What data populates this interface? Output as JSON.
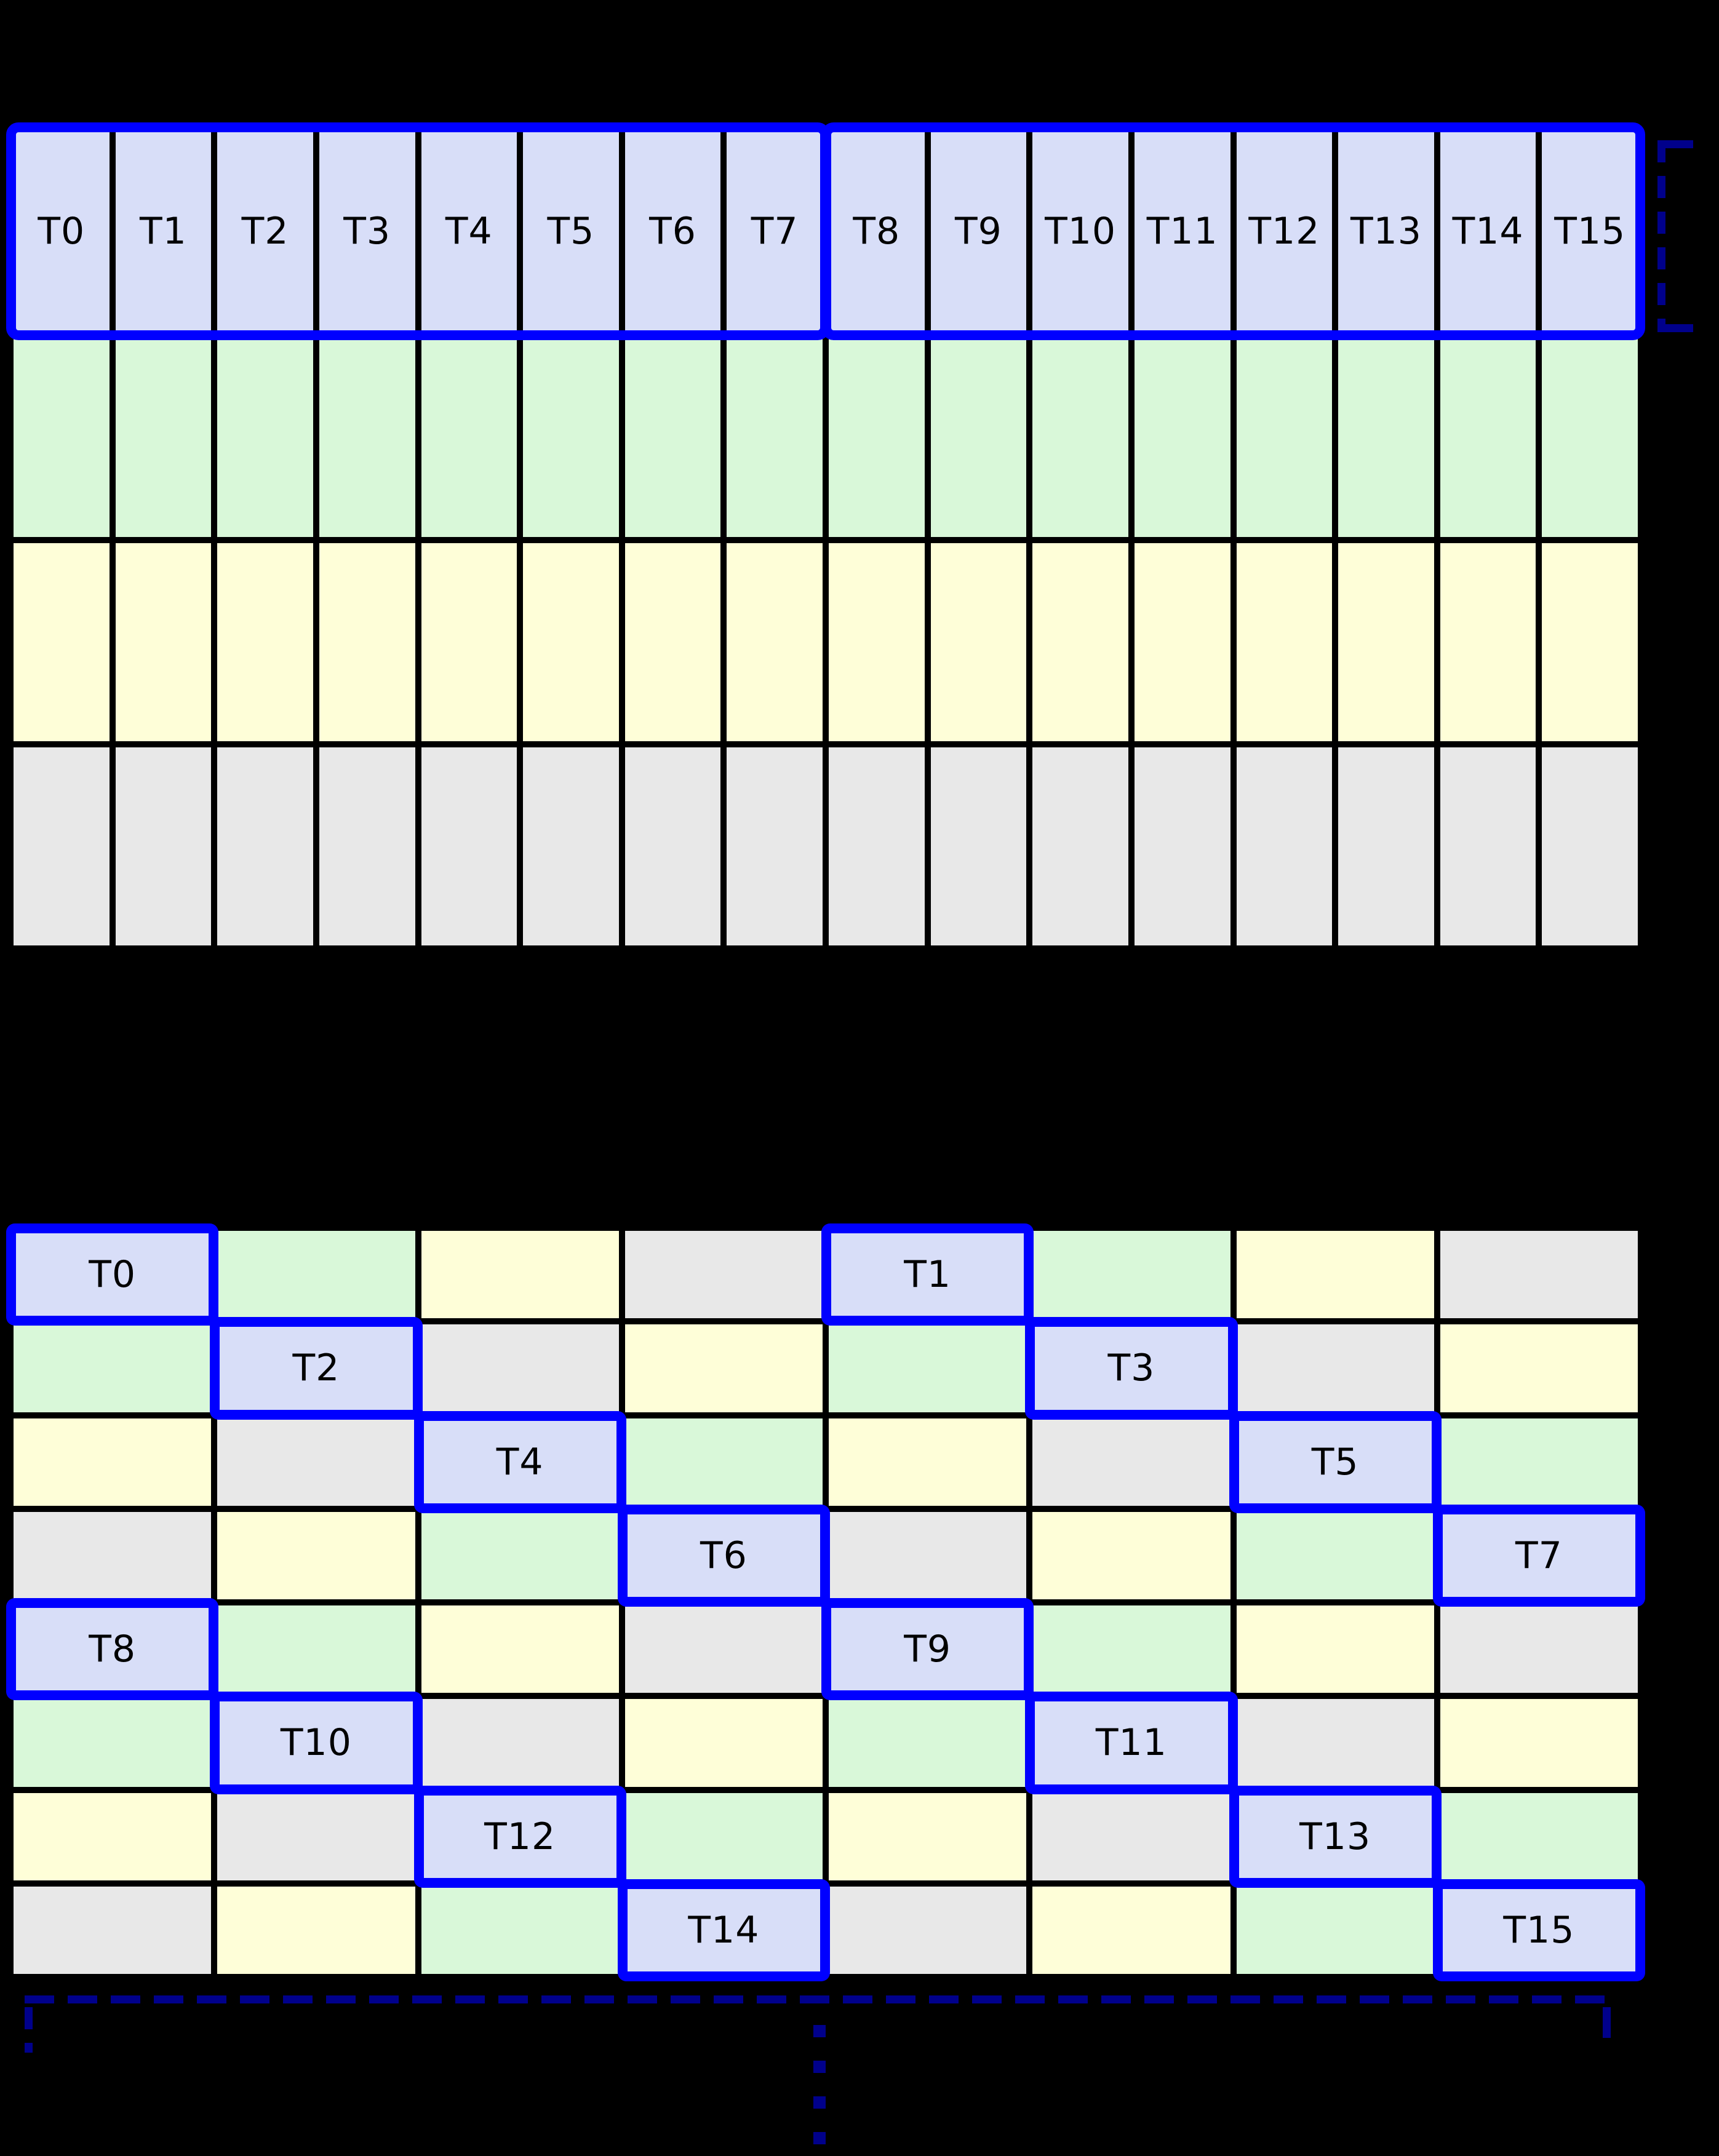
{
  "diagram": {
    "background": "#000000",
    "colors": {
      "banks": [
        "#D8DEF8",
        "#D9F8D9",
        "#FEFED8",
        "#E8E8E8"
      ],
      "highlight_border": "#0000FF",
      "bracket_dash": "#00008B",
      "grid_line": "#000000",
      "label_text": "#000000"
    },
    "table1": {
      "columns": 16,
      "header_labels": [
        "T0",
        "T1",
        "T2",
        "T3",
        "T4",
        "T5",
        "T6",
        "T7",
        "T8",
        "T9",
        "T10",
        "T11",
        "T12",
        "T13",
        "T14",
        "T15"
      ],
      "header_groups": [
        {
          "first": 0,
          "last": 7
        },
        {
          "first": 8,
          "last": 15
        }
      ],
      "body_row_banks": [
        1,
        2,
        3
      ]
    },
    "table2": {
      "columns": 8,
      "rows": [
        {
          "cells": [
            {
              "bank": 0,
              "label": "T0",
              "highlighted": true
            },
            {
              "bank": 1
            },
            {
              "bank": 2
            },
            {
              "bank": 3
            },
            {
              "bank": 0,
              "label": "T1",
              "highlighted": true
            },
            {
              "bank": 1
            },
            {
              "bank": 2
            },
            {
              "bank": 3
            }
          ]
        },
        {
          "cells": [
            {
              "bank": 1
            },
            {
              "bank": 0,
              "label": "T2",
              "highlighted": true
            },
            {
              "bank": 3
            },
            {
              "bank": 2
            },
            {
              "bank": 1
            },
            {
              "bank": 0,
              "label": "T3",
              "highlighted": true
            },
            {
              "bank": 3
            },
            {
              "bank": 2
            }
          ]
        },
        {
          "cells": [
            {
              "bank": 2
            },
            {
              "bank": 3
            },
            {
              "bank": 0,
              "label": "T4",
              "highlighted": true
            },
            {
              "bank": 1
            },
            {
              "bank": 2
            },
            {
              "bank": 3
            },
            {
              "bank": 0,
              "label": "T5",
              "highlighted": true
            },
            {
              "bank": 1
            }
          ]
        },
        {
          "cells": [
            {
              "bank": 3
            },
            {
              "bank": 2
            },
            {
              "bank": 1
            },
            {
              "bank": 0,
              "label": "T6",
              "highlighted": true
            },
            {
              "bank": 3
            },
            {
              "bank": 2
            },
            {
              "bank": 1
            },
            {
              "bank": 0,
              "label": "T7",
              "highlighted": true
            }
          ]
        },
        {
          "cells": [
            {
              "bank": 0,
              "label": "T8",
              "highlighted": true
            },
            {
              "bank": 1
            },
            {
              "bank": 2
            },
            {
              "bank": 3
            },
            {
              "bank": 0,
              "label": "T9",
              "highlighted": true
            },
            {
              "bank": 1
            },
            {
              "bank": 2
            },
            {
              "bank": 3
            }
          ]
        },
        {
          "cells": [
            {
              "bank": 1
            },
            {
              "bank": 0,
              "label": "T10",
              "highlighted": true
            },
            {
              "bank": 3
            },
            {
              "bank": 2
            },
            {
              "bank": 1
            },
            {
              "bank": 0,
              "label": "T11",
              "highlighted": true
            },
            {
              "bank": 3
            },
            {
              "bank": 2
            }
          ]
        },
        {
          "cells": [
            {
              "bank": 2
            },
            {
              "bank": 3
            },
            {
              "bank": 0,
              "label": "T12",
              "highlighted": true
            },
            {
              "bank": 1
            },
            {
              "bank": 2
            },
            {
              "bank": 3
            },
            {
              "bank": 0,
              "label": "T13",
              "highlighted": true
            },
            {
              "bank": 1
            }
          ]
        },
        {
          "cells": [
            {
              "bank": 3
            },
            {
              "bank": 2
            },
            {
              "bank": 1
            },
            {
              "bank": 0,
              "label": "T14",
              "highlighted": true
            },
            {
              "bank": 3
            },
            {
              "bank": 2
            },
            {
              "bank": 1
            },
            {
              "bank": 0,
              "label": "T15",
              "highlighted": true
            }
          ]
        }
      ]
    }
  }
}
